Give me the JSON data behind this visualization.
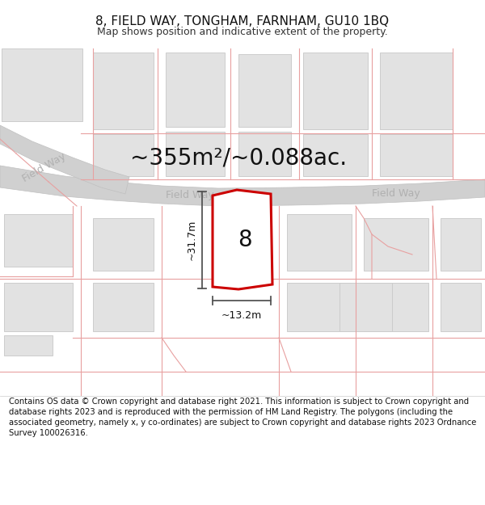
{
  "title": "8, FIELD WAY, TONGHAM, FARNHAM, GU10 1BQ",
  "subtitle": "Map shows position and indicative extent of the property.",
  "area_text": "~355m²/~0.088ac.",
  "dim_vertical": "~31.7m",
  "dim_horizontal": "~13.2m",
  "property_number": "8",
  "road_name_left": "Field Way",
  "road_name_center": "Field Way",
  "road_name_right": "Field Way",
  "copyright_text": "Contains OS data © Crown copyright and database right 2021. This information is subject to Crown copyright and database rights 2023 and is reproduced with the permission of HM Land Registry. The polygons (including the associated geometry, namely x, y co-ordinates) are subject to Crown copyright and database rights 2023 Ordnance Survey 100026316.",
  "bg_color": "#ffffff",
  "map_bg": "#f0f0f0",
  "building_fill": "#e2e2e2",
  "building_stroke": "#cccccc",
  "road_fill": "#d0d0d0",
  "pink_line": "#e8a0a0",
  "red_polygon": "#cc0000",
  "dim_line_color": "#555555",
  "road_text_color": "#b0b0b0",
  "title_fontsize": 11,
  "subtitle_fontsize": 9,
  "area_fontsize": 20,
  "copyright_fontsize": 7.2,
  "prop_poly_x": [
    263,
    293,
    335,
    337,
    295,
    263
  ],
  "prop_poly_y": [
    248,
    255,
    250,
    138,
    132,
    135
  ],
  "road_top_x": [
    0,
    80,
    140,
    200,
    270,
    360,
    450,
    520,
    600
  ],
  "road_top_y": [
    285,
    272,
    265,
    260,
    257,
    258,
    260,
    263,
    268
  ],
  "road_bot_x": [
    0,
    80,
    140,
    200,
    270,
    360,
    450,
    520,
    600
  ],
  "road_bot_y": [
    258,
    247,
    242,
    238,
    235,
    236,
    238,
    241,
    246
  ],
  "road2_top_x": [
    0,
    40,
    90,
    130,
    160
  ],
  "road2_top_y": [
    335,
    315,
    295,
    280,
    271
  ],
  "road2_bot_x": [
    0,
    40,
    90,
    125,
    155
  ],
  "road2_bot_y": [
    312,
    292,
    272,
    258,
    250
  ]
}
